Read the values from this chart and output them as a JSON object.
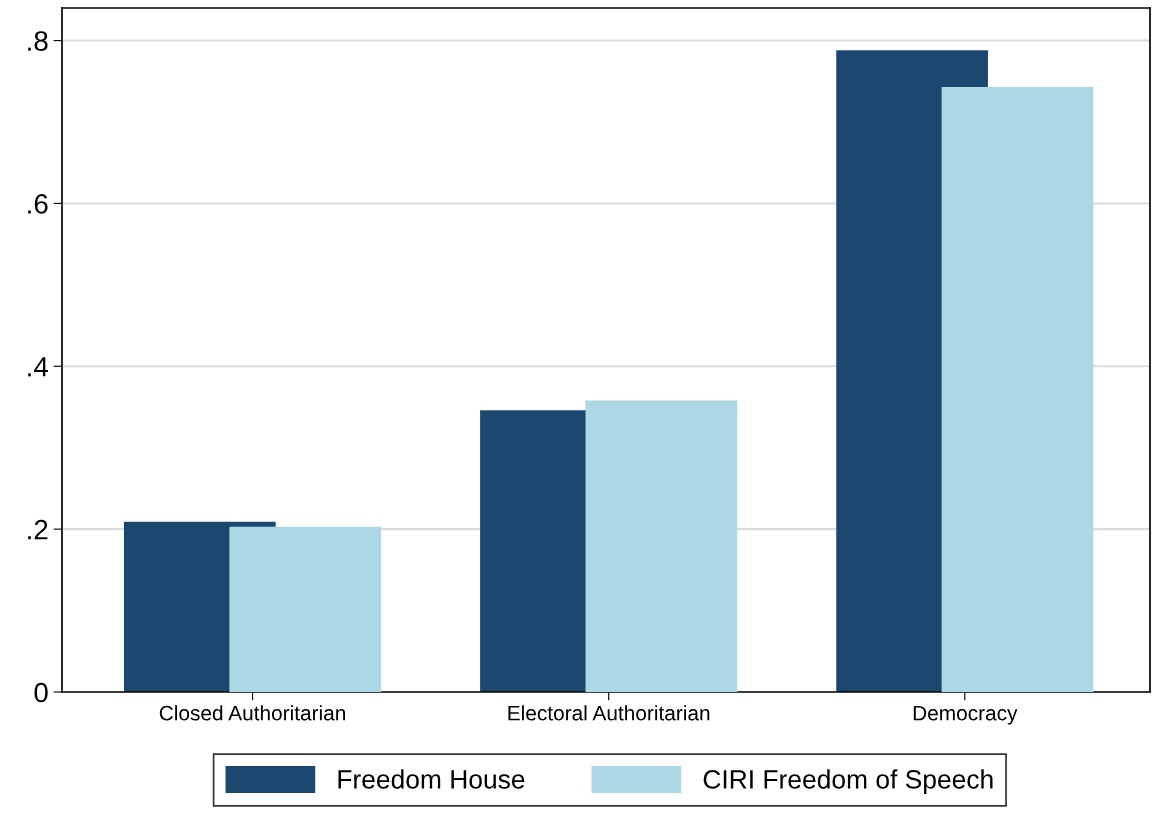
{
  "chart_data": {
    "type": "bar",
    "categories": [
      "Closed Authoritarian",
      "Electoral Authoritarian",
      "Democracy"
    ],
    "series": [
      {
        "name": "Freedom House",
        "color": "#1c4870",
        "values": [
          0.209,
          0.346,
          0.788
        ]
      },
      {
        "name": "CIRI Freedom of Speech",
        "color": "#acd8e5",
        "values": [
          0.203,
          0.358,
          0.743
        ]
      }
    ],
    "ylim": [
      0,
      0.84
    ],
    "yticks": [
      {
        "value": 0,
        "label": "0"
      },
      {
        "value": 0.2,
        "label": ".2"
      },
      {
        "value": 0.4,
        "label": ".4"
      },
      {
        "value": 0.6,
        "label": ".6"
      },
      {
        "value": 0.8,
        "label": ".8"
      }
    ],
    "grid": "y",
    "legend": "bottom"
  }
}
